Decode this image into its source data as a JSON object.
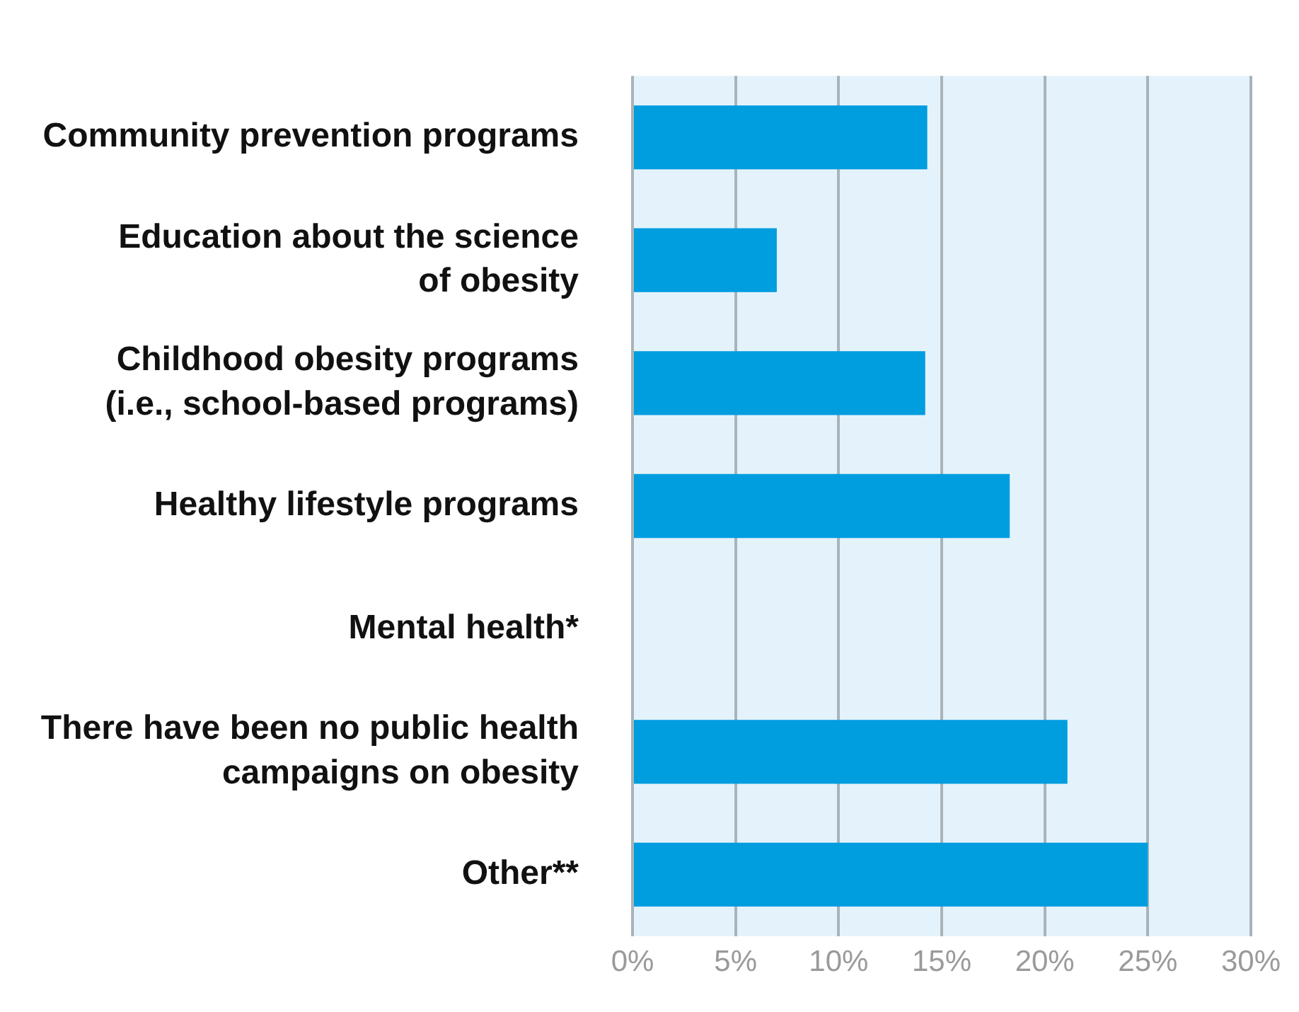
{
  "chart_data": {
    "type": "bar",
    "orientation": "horizontal",
    "categories": [
      "Community prevention programs",
      "Education about the science\nof obesity",
      "Childhood obesity programs\n(i.e., school-based programs)",
      "Healthy lifestyle programs",
      "Mental health*",
      "There have been no public health\ncampaigns on obesity",
      "Other**"
    ],
    "values": [
      14.3,
      7.0,
      14.2,
      18.3,
      null,
      21.1,
      25.0
    ],
    "color": "#009ddf",
    "xlim": [
      0,
      30
    ],
    "xticks": [
      {
        "value": 0,
        "label": "0%"
      },
      {
        "value": 5,
        "label": "5%"
      },
      {
        "value": 10,
        "label": "10%"
      },
      {
        "value": 15,
        "label": "15%"
      },
      {
        "value": 20,
        "label": "20%"
      },
      {
        "value": 25,
        "label": "25%"
      },
      {
        "value": 30,
        "label": "30%"
      }
    ],
    "grid": "x"
  }
}
